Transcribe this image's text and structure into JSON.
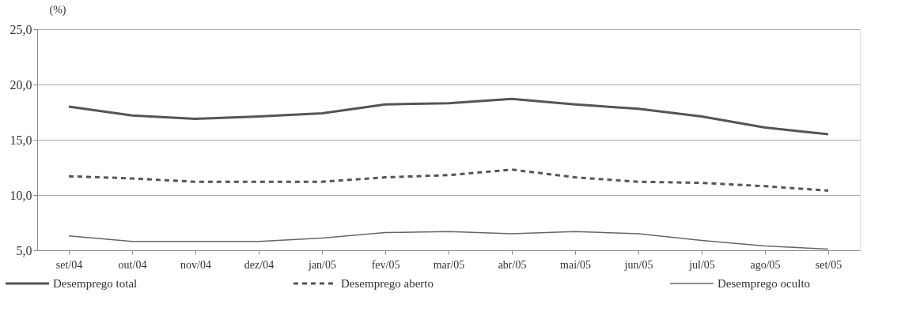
{
  "chart_data": {
    "type": "line",
    "ylabel": "(%)",
    "categories": [
      "set/04",
      "out/04",
      "nov/04",
      "dez/04",
      "jan/05",
      "fev/05",
      "mar/05",
      "abr/05",
      "mai/05",
      "jun/05",
      "jul/05",
      "ago/05",
      "set/05"
    ],
    "series": [
      {
        "name": "Desemprego total",
        "color": "#555555",
        "line_style": "solid",
        "values": [
          18.0,
          17.2,
          16.9,
          17.1,
          17.4,
          18.2,
          18.3,
          18.7,
          18.2,
          17.8,
          17.1,
          16.1,
          15.5
        ]
      },
      {
        "name": "Desemprego aberto",
        "color": "#555555",
        "line_style": "dashed",
        "values": [
          11.7,
          11.5,
          11.2,
          11.2,
          11.2,
          11.6,
          11.8,
          12.3,
          11.6,
          11.2,
          11.1,
          10.8,
          10.4
        ]
      },
      {
        "name": "Desemprego oculto",
        "color": "#666666",
        "line_style": "solid",
        "values": [
          6.3,
          5.8,
          5.8,
          5.8,
          6.1,
          6.6,
          6.7,
          6.5,
          6.7,
          6.5,
          5.9,
          5.4,
          5.1
        ]
      }
    ],
    "ylim": [
      5,
      25
    ],
    "yticks": [
      {
        "value": 5,
        "label": "5,0"
      },
      {
        "value": 10,
        "label": "10,0"
      },
      {
        "value": 15,
        "label": "15,0"
      },
      {
        "value": 20,
        "label": "20,0"
      },
      {
        "value": 25,
        "label": "25,0"
      }
    ],
    "grid": "y",
    "legend": "bottom",
    "marker": "none"
  }
}
